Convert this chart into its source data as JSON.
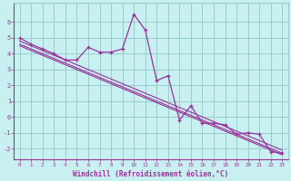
{
  "xlabel": "Windchill (Refroidissement éolien,°C)",
  "background_color": "#c8f0f0",
  "line_color": "#993399",
  "grid_color": "#99cccc",
  "x": [
    0,
    1,
    2,
    3,
    4,
    5,
    6,
    7,
    8,
    9,
    10,
    11,
    12,
    13,
    14,
    15,
    16,
    17,
    18,
    19,
    20,
    21,
    22,
    23
  ],
  "data_line": [
    5.0,
    4.6,
    4.3,
    4.0,
    3.6,
    3.6,
    4.4,
    4.1,
    4.1,
    4.3,
    6.5,
    5.5,
    2.3,
    2.6,
    -0.2,
    0.7,
    -0.4,
    -0.4,
    -0.5,
    -1.1,
    -1.0,
    -1.1,
    -2.2,
    -2.3
  ],
  "trend1": [
    4.6,
    4.3,
    4.0,
    3.7,
    3.4,
    3.1,
    2.8,
    2.5,
    2.2,
    1.9,
    1.6,
    1.3,
    1.0,
    0.7,
    0.4,
    0.1,
    -0.2,
    -0.5,
    -0.8,
    -1.1,
    -1.4,
    -1.7,
    -2.0,
    -2.3
  ],
  "trend2": [
    4.8,
    4.5,
    4.2,
    3.9,
    3.6,
    3.3,
    3.0,
    2.7,
    2.4,
    2.1,
    1.8,
    1.5,
    1.2,
    0.9,
    0.6,
    0.3,
    0.0,
    -0.3,
    -0.6,
    -0.9,
    -1.2,
    -1.5,
    -1.8,
    -2.1
  ],
  "trend3": [
    4.5,
    4.2,
    3.9,
    3.6,
    3.3,
    3.0,
    2.7,
    2.4,
    2.1,
    1.8,
    1.5,
    1.2,
    0.9,
    0.6,
    0.3,
    0.0,
    -0.3,
    -0.6,
    -0.9,
    -1.2,
    -1.5,
    -1.8,
    -2.1,
    -2.4
  ],
  "ylim": [
    -2.7,
    7.2
  ],
  "xlim": [
    -0.5,
    23.5
  ],
  "yticks": [
    -2,
    -1,
    0,
    1,
    2,
    3,
    4,
    5,
    6
  ],
  "xticks": [
    0,
    1,
    2,
    3,
    4,
    5,
    6,
    7,
    8,
    9,
    10,
    11,
    12,
    13,
    14,
    15,
    16,
    17,
    18,
    19,
    20,
    21,
    22,
    23
  ]
}
